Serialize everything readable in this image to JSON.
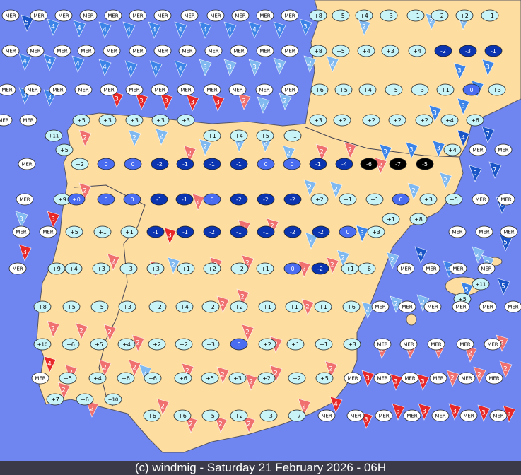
{
  "stations": [
    [
      "MER",
      "MER",
      "MER",
      "MER",
      "MER",
      "MER",
      "MER",
      "MER",
      "MER",
      "MER",
      "MER",
      "MER",
      "+8",
      "+5",
      "+4",
      "+3",
      "+1",
      "+2",
      "+2",
      "+1"
    ],
    [
      "MER",
      "MER",
      "MER",
      "MER",
      "MER",
      "MER",
      "MER",
      "MER",
      "MER",
      "MER",
      "MER",
      "MER",
      "+8",
      "+5",
      "+4",
      "+3",
      "+4",
      "-2",
      "-3",
      "-1"
    ],
    [
      "MER",
      "MER",
      "MER",
      "MER",
      "MER",
      "MER",
      "MER",
      "MER",
      "MER",
      "MER",
      "MER",
      "MER",
      "+6",
      "+5",
      "+4",
      "+5",
      "+3",
      "+1",
      "0",
      "+3"
    ],
    [
      "MER",
      "MER",
      "+5",
      "+3",
      "+3",
      "+3",
      "+3",
      "+3",
      "+2",
      "+2",
      "+2",
      "+2",
      "+4",
      "+6"
    ],
    [
      "+11",
      "+1",
      "+4",
      "+5",
      "+1"
    ],
    [
      "+5",
      "+4",
      "MER",
      "MER"
    ],
    [
      "MER",
      "+2",
      "0",
      "0",
      "-2",
      "-1",
      "-1",
      "-1",
      "0",
      "0",
      "-1",
      "-4",
      "-6",
      "-7",
      "-5"
    ],
    [
      "MER",
      "+9",
      "+0",
      "0",
      "0",
      "-1",
      "-1",
      "0",
      "-2",
      "-2",
      "-2",
      "+2",
      "+1",
      "+1",
      "0",
      "+3",
      "+5",
      "MER",
      "MER"
    ],
    [
      "+1",
      "+8"
    ],
    [
      "MER",
      "MER",
      "+5",
      "+1",
      "+1",
      "-1",
      "-1",
      "-2",
      "-1",
      "-1",
      "-2",
      "-2",
      "0",
      "+3",
      "MER",
      "MER",
      "MER"
    ],
    [
      "MER",
      "+9",
      "+4",
      "+3",
      "+3",
      "+3",
      "+1",
      "+2",
      "+2",
      "+1",
      "0",
      "-2",
      "+1",
      "+6",
      "MER",
      "MER",
      "MER",
      "MER"
    ],
    [
      "+11"
    ],
    [
      "+5"
    ],
    [
      "+8",
      "+5",
      "+5",
      "+3",
      "+2",
      "+4",
      "+2",
      "+2",
      "+1",
      "+1",
      "+1",
      "+6",
      "MER",
      "MER",
      "MER",
      "MER",
      "MER",
      "MER"
    ],
    [
      "+10",
      "+6",
      "+5",
      "+4",
      "+2",
      "+2",
      "+3",
      "0",
      "+2",
      "+1",
      "+1",
      "+3",
      "MER",
      "MER",
      "MER",
      "MER",
      "MER"
    ],
    [
      "MER",
      "+5",
      "+4",
      "+6",
      "+6",
      "+6",
      "+5",
      "+3",
      "+2",
      "+2",
      "+5",
      "MER",
      "MER",
      "MER",
      "MER",
      "MER",
      "MER"
    ],
    [
      "+7",
      "+6",
      "+10"
    ],
    [
      "+6",
      "+6",
      "+5",
      "+2",
      "+3",
      "+7",
      "MER",
      "MER",
      "MER",
      "MER",
      "MER",
      "MER",
      "MER"
    ]
  ],
  "flags": [
    {
      "value": "5",
      "color": "#1a55c8"
    },
    {
      "value": "4",
      "color": "#3d84e8"
    },
    {
      "value": "4",
      "color": "#3d84e8"
    },
    {
      "value": "4",
      "color": "#3d84e8"
    },
    {
      "value": "4",
      "color": "#3d84e8"
    },
    {
      "value": "4",
      "color": "#3d84e8"
    },
    {
      "value": "4",
      "color": "#3d84e8"
    },
    {
      "value": "4",
      "color": "#3d84e8"
    },
    {
      "value": "4",
      "color": "#3d84e8"
    },
    {
      "value": "4",
      "color": "#3d84e8"
    },
    {
      "value": "4",
      "color": "#3d84e8"
    },
    {
      "value": "3",
      "color": "#3d84e8"
    },
    {
      "value": "2",
      "color": "#80b8f0"
    },
    {
      "value": "2",
      "color": "#80b8f0"
    },
    {
      "value": "2",
      "color": "#80b8f0"
    },
    {
      "value": "4",
      "color": "#3d84e8"
    },
    {
      "value": "4",
      "color": "#3d84e8"
    },
    {
      "value": "4",
      "color": "#3d84e8"
    },
    {
      "value": "4",
      "color": "#3d84e8"
    },
    {
      "value": "4",
      "color": "#3d84e8"
    },
    {
      "value": "4",
      "color": "#3d84e8"
    },
    {
      "value": "4",
      "color": "#3d84e8"
    },
    {
      "value": "3",
      "color": "#80b8f0"
    },
    {
      "value": "3",
      "color": "#80b8f0"
    },
    {
      "value": "3",
      "color": "#80b8f0"
    },
    {
      "value": "3",
      "color": "#80b8f0"
    },
    {
      "value": "2",
      "color": "#80b8f0"
    },
    {
      "value": "2",
      "color": "#80b8f0"
    },
    {
      "value": "3",
      "color": "#3d84e8"
    },
    {
      "value": "3",
      "color": "#3d84e8"
    },
    {
      "value": "3",
      "color": "#3d84e8"
    },
    {
      "value": "3",
      "color": "#3d84e8"
    },
    {
      "value": "3",
      "color": "#e82828"
    },
    {
      "value": "3",
      "color": "#e82828"
    },
    {
      "value": "3",
      "color": "#e82828"
    },
    {
      "value": "3",
      "color": "#e82828"
    },
    {
      "value": "3",
      "color": "#e82828"
    },
    {
      "value": "2",
      "color": "#f07070"
    },
    {
      "value": "2",
      "color": "#80b8f0"
    },
    {
      "value": "2",
      "color": "#80b8f0"
    },
    {
      "value": "3",
      "color": "#3d84e8"
    },
    {
      "value": "3",
      "color": "#3d84e8"
    },
    {
      "value": "3",
      "color": "#3d84e8"
    },
    {
      "value": "4",
      "color": "#1a55c8"
    },
    {
      "value": "7",
      "color": "#1a55c8"
    },
    {
      "value": "7",
      "color": "#1a55c8"
    },
    {
      "value": "5",
      "color": "#1a55c8"
    },
    {
      "value": "6",
      "color": "#1a55c8"
    },
    {
      "value": "5",
      "color": "#1a55c8"
    },
    {
      "value": "4",
      "color": "#1a55c8"
    },
    {
      "value": "5",
      "color": "#1a55c8"
    },
    {
      "value": "5",
      "color": "#3d84e8"
    },
    {
      "value": "3",
      "color": "#80b8f0"
    },
    {
      "value": "3",
      "color": "#e82828"
    },
    {
      "value": "3",
      "color": "#e82828"
    },
    {
      "value": "4",
      "color": "#e82828"
    },
    {
      "value": "2",
      "color": "#f07070"
    },
    {
      "value": "2",
      "color": "#f07070"
    },
    {
      "value": "2",
      "color": "#f07070"
    },
    {
      "value": "2",
      "color": "#f07070"
    },
    {
      "value": "2",
      "color": "#f07070"
    },
    {
      "value": "2",
      "color": "#f07070"
    },
    {
      "value": "2",
      "color": "#f07070"
    },
    {
      "value": "2",
      "color": "#f07070"
    },
    {
      "value": "2",
      "color": "#f07070"
    },
    {
      "value": "2",
      "color": "#f07070"
    },
    {
      "value": "2",
      "color": "#f07070"
    },
    {
      "value": "2",
      "color": "#f07070"
    },
    {
      "value": "2",
      "color": "#f07070"
    },
    {
      "value": "2",
      "color": "#f07070"
    },
    {
      "value": "2",
      "color": "#f07070"
    },
    {
      "value": "2",
      "color": "#f07070"
    },
    {
      "value": "2",
      "color": "#f07070"
    },
    {
      "value": "2",
      "color": "#f07070"
    },
    {
      "value": "2",
      "color": "#f07070"
    },
    {
      "value": "2",
      "color": "#f07070"
    },
    {
      "value": "2",
      "color": "#f07070"
    },
    {
      "value": "2",
      "color": "#f07070"
    },
    {
      "value": "2",
      "color": "#f07070"
    },
    {
      "value": "2",
      "color": "#f07070"
    },
    {
      "value": "2",
      "color": "#f07070"
    },
    {
      "value": "2",
      "color": "#f07070"
    },
    {
      "value": "2",
      "color": "#f07070"
    },
    {
      "value": "2",
      "color": "#f07070"
    },
    {
      "value": "2",
      "color": "#f07070"
    },
    {
      "value": "2",
      "color": "#f07070"
    },
    {
      "value": "2",
      "color": "#f07070"
    },
    {
      "value": "2",
      "color": "#f07070"
    },
    {
      "value": "2",
      "color": "#f07070"
    },
    {
      "value": "2",
      "color": "#f07070"
    },
    {
      "value": "2",
      "color": "#f07070"
    },
    {
      "value": "2",
      "color": "#f07070"
    },
    {
      "value": "2",
      "color": "#f07070"
    },
    {
      "value": "2",
      "color": "#f07070"
    },
    {
      "value": "2",
      "color": "#f07070"
    },
    {
      "value": "2",
      "color": "#f07070"
    },
    {
      "value": "2",
      "color": "#f07070"
    },
    {
      "value": "2",
      "color": "#f07070"
    },
    {
      "value": "2",
      "color": "#f07070"
    },
    {
      "value": "2",
      "color": "#f07070"
    },
    {
      "value": "2",
      "color": "#f07070"
    },
    {
      "value": "2",
      "color": "#f07070"
    },
    {
      "value": "2",
      "color": "#f07070"
    },
    {
      "value": "3",
      "color": "#e82828"
    },
    {
      "value": "3",
      "color": "#e82828"
    },
    {
      "value": "3",
      "color": "#e82828"
    },
    {
      "value": "3",
      "color": "#e82828"
    },
    {
      "value": "4",
      "color": "#e82828"
    },
    {
      "value": "3",
      "color": "#e82828"
    },
    {
      "value": "3",
      "color": "#e82828"
    },
    {
      "value": "3",
      "color": "#e82828"
    },
    {
      "value": "3",
      "color": "#e82828"
    },
    {
      "value": "3",
      "color": "#e82828"
    },
    {
      "value": "3",
      "color": "#e82828"
    },
    {
      "value": "2",
      "color": "#80b8f0"
    },
    {
      "value": "2",
      "color": "#80b8f0"
    },
    {
      "value": "2",
      "color": "#80b8f0"
    },
    {
      "value": "2",
      "color": "#80b8f0"
    },
    {
      "value": "2",
      "color": "#80b8f0"
    },
    {
      "value": "2",
      "color": "#80b8f0"
    },
    {
      "value": "2",
      "color": "#80b8f0"
    },
    {
      "value": "2",
      "color": "#80b8f0"
    },
    {
      "value": "2",
      "color": "#80b8f0"
    },
    {
      "value": "2",
      "color": "#80b8f0"
    },
    {
      "value": "2",
      "color": "#80b8f0"
    },
    {
      "value": "2",
      "color": "#80b8f0"
    },
    {
      "value": "2",
      "color": "#80b8f0"
    },
    {
      "value": "2",
      "color": "#80b8f0"
    },
    {
      "value": "2",
      "color": "#80b8f0"
    },
    {
      "value": "2",
      "color": "#80b8f0"
    },
    {
      "value": "2",
      "color": "#80b8f0"
    },
    {
      "value": "2",
      "color": "#80b8f0"
    },
    {
      "value": "2",
      "color": "#80b8f0"
    },
    {
      "value": "2",
      "color": "#80b8f0"
    },
    {
      "value": "3",
      "color": "#3d84e8"
    },
    {
      "value": "3",
      "color": "#3d84e8"
    },
    {
      "value": "3",
      "color": "#3d84e8"
    },
    {
      "value": "3",
      "color": "#3d84e8"
    },
    {
      "value": "3",
      "color": "#3d84e8"
    }
  ],
  "footer": "(c) windmig - Saturday 21 February 2026 - 06H"
}
